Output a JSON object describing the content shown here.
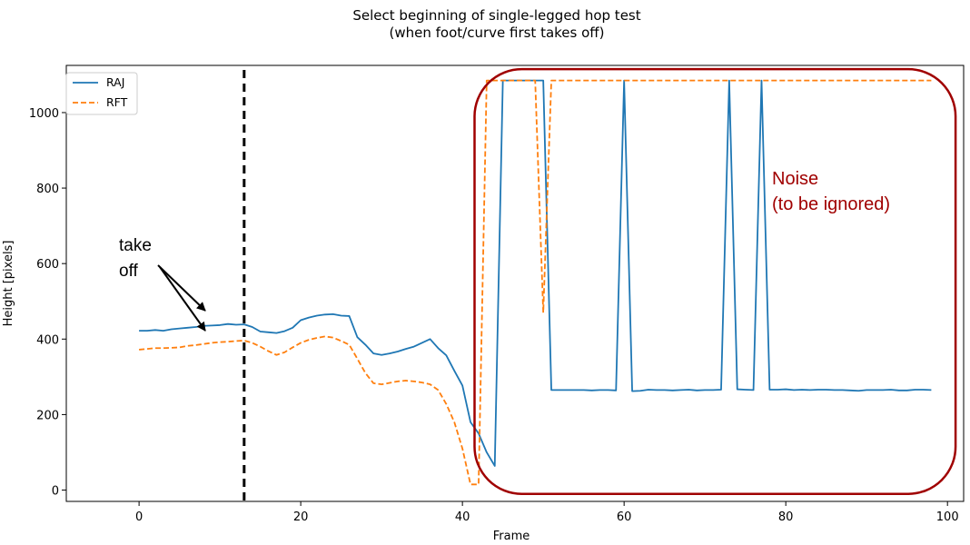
{
  "chart_data": {
    "type": "line",
    "title_line1": "Select beginning of single-legged hop test",
    "title_line2": "(when foot/curve first takes off)",
    "xlabel": "Frame",
    "ylabel": "Height [pixels]",
    "xlim": [
      -9,
      102
    ],
    "ylim": [
      -30,
      1125
    ],
    "xticks": [
      0,
      20,
      40,
      60,
      80,
      100
    ],
    "yticks": [
      0,
      200,
      400,
      600,
      800,
      1000
    ],
    "legend_position": "top-left",
    "series": [
      {
        "name": "RAJ",
        "color": "#1f77b4",
        "style": "solid",
        "x": [
          0,
          1,
          2,
          3,
          4,
          5,
          6,
          7,
          8,
          9,
          10,
          11,
          12,
          13,
          14,
          15,
          16,
          17,
          18,
          19,
          20,
          21,
          22,
          23,
          24,
          25,
          26,
          27,
          28,
          29,
          30,
          31,
          32,
          33,
          34,
          35,
          36,
          37,
          38,
          39,
          40,
          41,
          42,
          43,
          44,
          45,
          46,
          47,
          48,
          49,
          50,
          51,
          52,
          53,
          54,
          55,
          56,
          57,
          58,
          59,
          60,
          61,
          62,
          63,
          64,
          65,
          66,
          67,
          68,
          69,
          70,
          71,
          72,
          73,
          74,
          75,
          76,
          77,
          78,
          79,
          80,
          81,
          82,
          83,
          84,
          85,
          86,
          87,
          88,
          89,
          90,
          91,
          92,
          93,
          94,
          95,
          96,
          97,
          98
        ],
        "y": [
          422,
          422,
          424,
          422,
          426,
          428,
          430,
          432,
          435,
          436,
          437,
          440,
          438,
          439,
          432,
          420,
          418,
          416,
          421,
          430,
          450,
          457,
          462,
          465,
          466,
          462,
          461,
          405,
          385,
          362,
          358,
          362,
          367,
          374,
          380,
          390,
          400,
          376,
          357,
          316,
          277,
          180,
          150,
          100,
          64,
          1085,
          1085,
          1085,
          1085,
          1085,
          1085,
          265,
          265,
          265,
          265,
          265,
          264,
          265,
          265,
          264,
          1085,
          262,
          263,
          266,
          265,
          265,
          264,
          265,
          266,
          264,
          265,
          265,
          266,
          1085,
          267,
          266,
          265,
          1085,
          266,
          266,
          267,
          265,
          266,
          265,
          266,
          266,
          265,
          265,
          264,
          263,
          265,
          265,
          265,
          266,
          264,
          264,
          266,
          266,
          265
        ]
      },
      {
        "name": "RFT",
        "color": "#ff7f0e",
        "style": "dashed",
        "x": [
          0,
          1,
          2,
          3,
          4,
          5,
          6,
          7,
          8,
          9,
          10,
          11,
          12,
          13,
          14,
          15,
          16,
          17,
          18,
          19,
          20,
          21,
          22,
          23,
          24,
          25,
          26,
          27,
          28,
          29,
          30,
          31,
          32,
          33,
          34,
          35,
          36,
          37,
          38,
          39,
          40,
          41,
          42,
          43,
          44,
          45,
          46,
          47,
          48,
          49,
          50,
          51,
          52,
          53,
          54,
          55,
          56,
          57,
          58,
          59,
          60,
          61,
          62,
          63,
          64,
          65,
          66,
          67,
          68,
          69,
          70,
          71,
          72,
          73,
          74,
          75,
          76,
          77,
          78,
          79,
          80,
          81,
          82,
          83,
          84,
          85,
          86,
          87,
          88,
          89,
          90,
          91,
          92,
          93,
          94,
          95,
          96,
          97,
          98
        ],
        "y": [
          372,
          374,
          376,
          376,
          377,
          378,
          382,
          384,
          387,
          390,
          392,
          393,
          395,
          396,
          390,
          380,
          368,
          358,
          365,
          378,
          390,
          398,
          403,
          407,
          404,
          395,
          385,
          348,
          310,
          283,
          280,
          284,
          288,
          290,
          288,
          285,
          280,
          265,
          228,
          180,
          110,
          15,
          15,
          1085,
          1085,
          1085,
          1085,
          1085,
          1085,
          1085,
          470,
          1085,
          1085,
          1085,
          1085,
          1085,
          1085,
          1085,
          1085,
          1085,
          1085,
          1085,
          1085,
          1085,
          1085,
          1085,
          1085,
          1085,
          1085,
          1085,
          1085,
          1085,
          1085,
          1085,
          1085,
          1085,
          1085,
          1085,
          1085,
          1085,
          1085,
          1085,
          1085,
          1085,
          1085,
          1085,
          1085,
          1085,
          1085,
          1085,
          1085,
          1085,
          1085,
          1085,
          1085,
          1085,
          1085,
          1085,
          1085
        ]
      }
    ],
    "annotations": {
      "takeoff_label_line1": "take",
      "takeoff_label_line2": "off",
      "takeoff_frame": 13,
      "takeoff_marker_color": "#000000",
      "noise_label_line1": "Noise",
      "noise_label_line2": "(to be ignored)",
      "noise_color": "#a00000",
      "noise_region_x": [
        41.5,
        101
      ],
      "noise_region_y": [
        -10,
        1115
      ]
    }
  }
}
